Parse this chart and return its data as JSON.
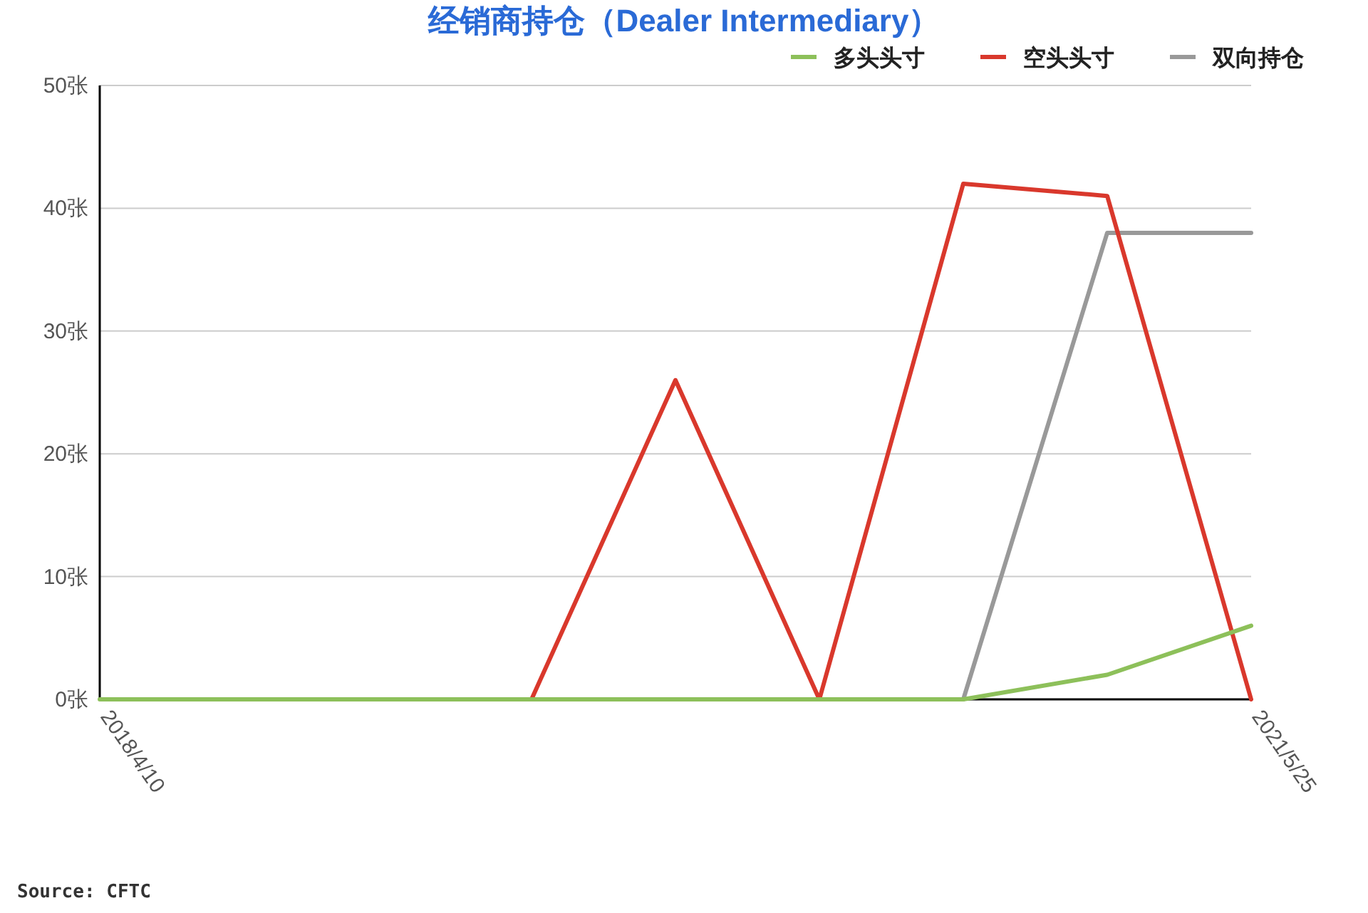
{
  "chart_data": {
    "type": "line",
    "title": "经销商持仓（Dealer Intermediary）",
    "categories": [
      "2018/4/10",
      null,
      null,
      null,
      null,
      null,
      null,
      null,
      "2021/5/25"
    ],
    "series": [
      {
        "name": "多头头寸",
        "color": "#8dc05a",
        "values": [
          0,
          0,
          0,
          0,
          0,
          0,
          0,
          2,
          6
        ]
      },
      {
        "name": "空头头寸",
        "color": "#d9382c",
        "values": [
          null,
          null,
          null,
          0,
          26,
          0,
          42,
          41,
          0
        ]
      },
      {
        "name": "双向持仓",
        "color": "#999999",
        "values": [
          null,
          null,
          null,
          null,
          null,
          null,
          0,
          38,
          38
        ]
      }
    ],
    "ylim": [
      0,
      50
    ],
    "yticks": [
      {
        "value": 0,
        "label": "0张"
      },
      {
        "value": 10,
        "label": "10张"
      },
      {
        "value": 20,
        "label": "20张"
      },
      {
        "value": 30,
        "label": "30张"
      },
      {
        "value": 40,
        "label": "40张"
      },
      {
        "value": 50,
        "label": "50张"
      }
    ],
    "grid": "y",
    "legend": "top right",
    "marker": "none",
    "line_style": "solid",
    "annotations": [
      "Source: CFTC"
    ]
  }
}
